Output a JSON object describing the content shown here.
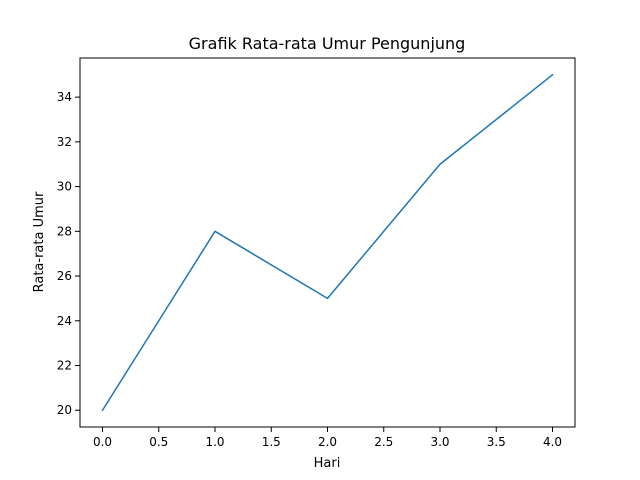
{
  "chart_data": {
    "type": "line",
    "title": "Grafik Rata-rata Umur Pengunjung",
    "xlabel": "Hari",
    "ylabel": "Rata-rata Umur",
    "x": [
      0,
      1,
      2,
      3,
      4
    ],
    "series": [
      {
        "values": [
          20,
          28,
          25,
          31,
          35
        ],
        "color": "#1f77b4"
      }
    ],
    "xlim": [
      -0.2,
      4.2
    ],
    "ylim": [
      19.25,
      35.75
    ],
    "xticks": [
      0.0,
      0.5,
      1.0,
      1.5,
      2.0,
      2.5,
      3.0,
      3.5,
      4.0
    ],
    "xtick_labels": [
      "0.0",
      "0.5",
      "1.0",
      "1.5",
      "2.0",
      "2.5",
      "3.0",
      "3.5",
      "4.0"
    ],
    "yticks": [
      20,
      22,
      24,
      26,
      28,
      30,
      32,
      34
    ],
    "ytick_labels": [
      "20",
      "22",
      "24",
      "26",
      "28",
      "30",
      "32",
      "34"
    ],
    "grid": false,
    "legend": "none"
  }
}
